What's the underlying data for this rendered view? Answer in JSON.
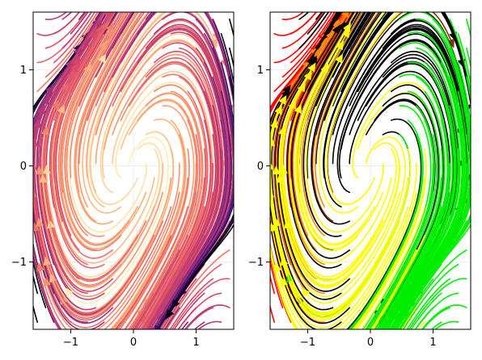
{
  "chart_data": [
    {
      "type": "streamplot",
      "title": "",
      "xlabel": "",
      "ylabel": "",
      "xlim": [
        -1.6,
        1.6
      ],
      "ylim": [
        -1.7,
        1.6
      ],
      "xticks": [
        -1,
        0,
        1
      ],
      "xtick_labels": [
        "−1",
        "0",
        "1"
      ],
      "yticks": [
        -1,
        0,
        1
      ],
      "ytick_labels": [
        "−1",
        "0",
        "1"
      ],
      "grid": true,
      "colormap": "magma",
      "colors": [
        "#000004",
        "#3b0f70",
        "#8c2981",
        "#de4968",
        "#fe9f6d",
        "#fcfdbf"
      ]
    },
    {
      "type": "streamplot",
      "title": "",
      "xlabel": "",
      "ylabel": "",
      "xlim": [
        -1.6,
        1.6
      ],
      "ylim": [
        -1.7,
        1.6
      ],
      "xticks": [
        -1,
        0,
        1
      ],
      "xtick_labels": [
        "−1",
        "0",
        "1"
      ],
      "yticks": [
        -1,
        0,
        1
      ],
      "ytick_labels": [
        "−1",
        "0",
        "1"
      ],
      "grid": true,
      "colormap": "region",
      "colors": [
        "#000000",
        "#00ee00",
        "#ffff00",
        "#ff8800",
        "#ff0000"
      ]
    }
  ]
}
